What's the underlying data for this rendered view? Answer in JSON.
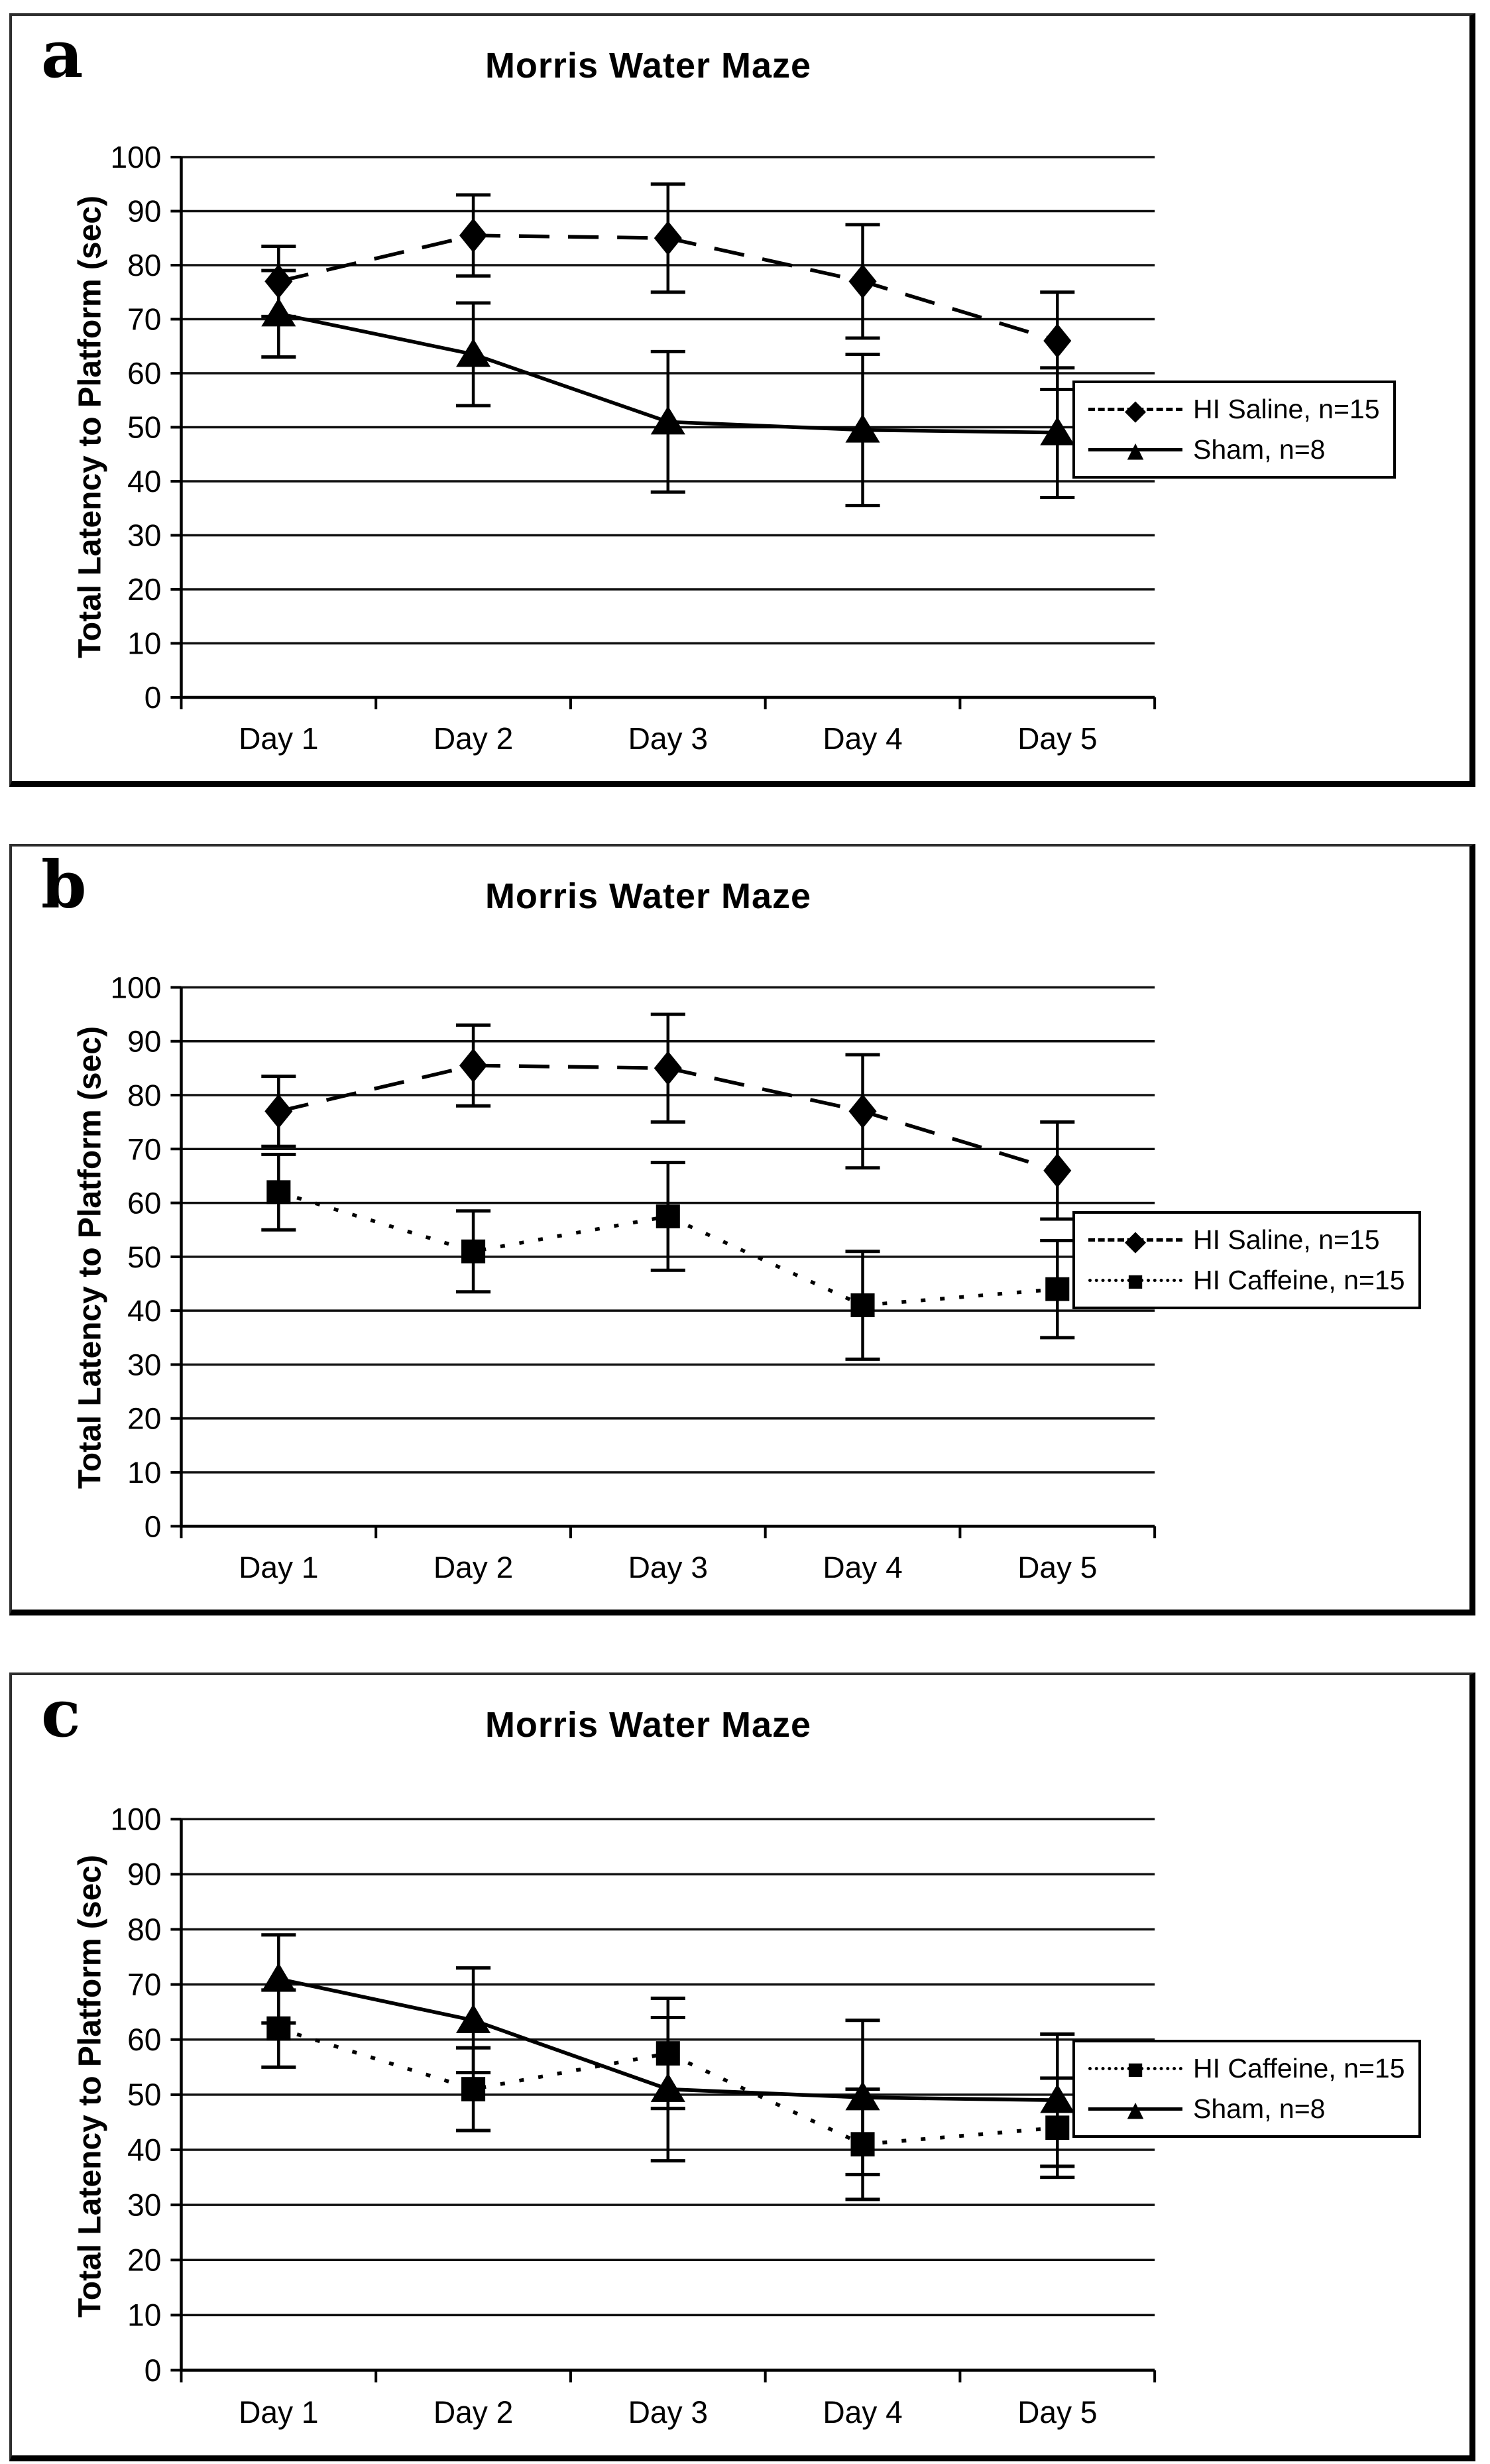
{
  "page": {
    "background": "#ffffff"
  },
  "colors": {
    "ink": "#000000",
    "panel_border": "#2e2e2e",
    "background": "#ffffff"
  },
  "chart_data": [
    {
      "panel_label": "a",
      "type": "line",
      "title": "Morris Water Maze",
      "ylabel": "Total Latency to Platform (sec)",
      "xlabel": "",
      "ylim": [
        0,
        100
      ],
      "ytick_step": 10,
      "yticks": [
        0,
        10,
        20,
        30,
        40,
        50,
        60,
        70,
        80,
        90,
        100
      ],
      "categories": [
        "Day 1",
        "Day 2",
        "Day 3",
        "Day 4",
        "Day 5"
      ],
      "grid": "horizontal",
      "legend_position": "outside-right",
      "series": [
        {
          "name": "HI Saline, n=15",
          "marker": "diamond",
          "line": "dashed",
          "values": [
            77,
            85.5,
            85,
            77,
            66
          ],
          "errors": [
            6.5,
            7.5,
            10,
            10.5,
            9
          ]
        },
        {
          "name": "Sham, n=8",
          "marker": "triangle",
          "line": "solid",
          "values": [
            71,
            63.5,
            51,
            49.5,
            49
          ],
          "errors": [
            8,
            9.5,
            13,
            14,
            12
          ]
        }
      ]
    },
    {
      "panel_label": "b",
      "type": "line",
      "title": "Morris Water Maze",
      "ylabel": "Total Latency to Platform (sec)",
      "xlabel": "",
      "ylim": [
        0,
        100
      ],
      "ytick_step": 10,
      "yticks": [
        0,
        10,
        20,
        30,
        40,
        50,
        60,
        70,
        80,
        90,
        100
      ],
      "categories": [
        "Day 1",
        "Day 2",
        "Day 3",
        "Day 4",
        "Day 5"
      ],
      "grid": "horizontal",
      "legend_position": "outside-right",
      "series": [
        {
          "name": "HI Saline, n=15",
          "marker": "diamond",
          "line": "dashed",
          "values": [
            77,
            85.5,
            85,
            77,
            66
          ],
          "errors": [
            6.5,
            7.5,
            10,
            10.5,
            9
          ]
        },
        {
          "name": "HI Caffeine, n=15",
          "marker": "square",
          "line": "dotted",
          "values": [
            62,
            51,
            57.5,
            41,
            44
          ],
          "errors": [
            7,
            7.5,
            10,
            10,
            9
          ]
        }
      ]
    },
    {
      "panel_label": "c",
      "type": "line",
      "title": "Morris Water Maze",
      "ylabel": "Total Latency to Platform (sec)",
      "xlabel": "",
      "ylim": [
        0,
        100
      ],
      "ytick_step": 10,
      "yticks": [
        0,
        10,
        20,
        30,
        40,
        50,
        60,
        70,
        80,
        90,
        100
      ],
      "categories": [
        "Day 1",
        "Day 2",
        "Day 3",
        "Day 4",
        "Day 5"
      ],
      "grid": "horizontal",
      "legend_position": "outside-right",
      "series": [
        {
          "name": "HI Caffeine, n=15",
          "marker": "square",
          "line": "dotted",
          "values": [
            62,
            51,
            57.5,
            41,
            44
          ],
          "errors": [
            7,
            7.5,
            10,
            10,
            9
          ]
        },
        {
          "name": "Sham, n=8",
          "marker": "triangle",
          "line": "solid",
          "values": [
            71,
            63.5,
            51,
            49.5,
            49
          ],
          "errors": [
            8,
            9.5,
            13,
            14,
            12
          ]
        }
      ]
    }
  ]
}
